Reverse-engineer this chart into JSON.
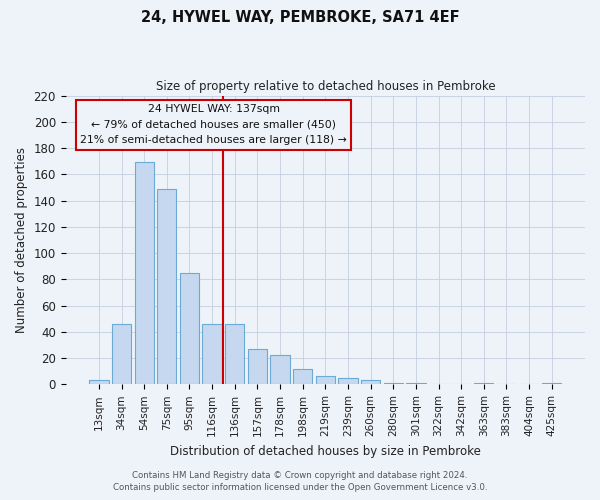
{
  "title": "24, HYWEL WAY, PEMBROKE, SA71 4EF",
  "subtitle": "Size of property relative to detached houses in Pembroke",
  "xlabel": "Distribution of detached houses by size in Pembroke",
  "ylabel": "Number of detached properties",
  "bar_labels": [
    "13sqm",
    "34sqm",
    "54sqm",
    "75sqm",
    "95sqm",
    "116sqm",
    "136sqm",
    "157sqm",
    "178sqm",
    "198sqm",
    "219sqm",
    "239sqm",
    "260sqm",
    "280sqm",
    "301sqm",
    "322sqm",
    "342sqm",
    "363sqm",
    "383sqm",
    "404sqm",
    "425sqm"
  ],
  "bar_values": [
    3,
    46,
    169,
    149,
    85,
    46,
    46,
    27,
    22,
    12,
    6,
    5,
    3,
    1,
    1,
    0,
    0,
    1,
    0,
    0,
    1
  ],
  "bar_color": "#c5d8f0",
  "bar_edge_color": "#6aaad4",
  "vline_color": "#cc0000",
  "annotation_title": "24 HYWEL WAY: 137sqm",
  "annotation_line1": "← 79% of detached houses are smaller (450)",
  "annotation_line2": "21% of semi-detached houses are larger (118) →",
  "annotation_box_edge": "#cc0000",
  "ylim": [
    0,
    220
  ],
  "yticks": [
    0,
    20,
    40,
    60,
    80,
    100,
    120,
    140,
    160,
    180,
    200,
    220
  ],
  "footer1": "Contains HM Land Registry data © Crown copyright and database right 2024.",
  "footer2": "Contains public sector information licensed under the Open Government Licence v3.0.",
  "background_color": "#eef2f9",
  "grid_color": "#c5cfdf"
}
